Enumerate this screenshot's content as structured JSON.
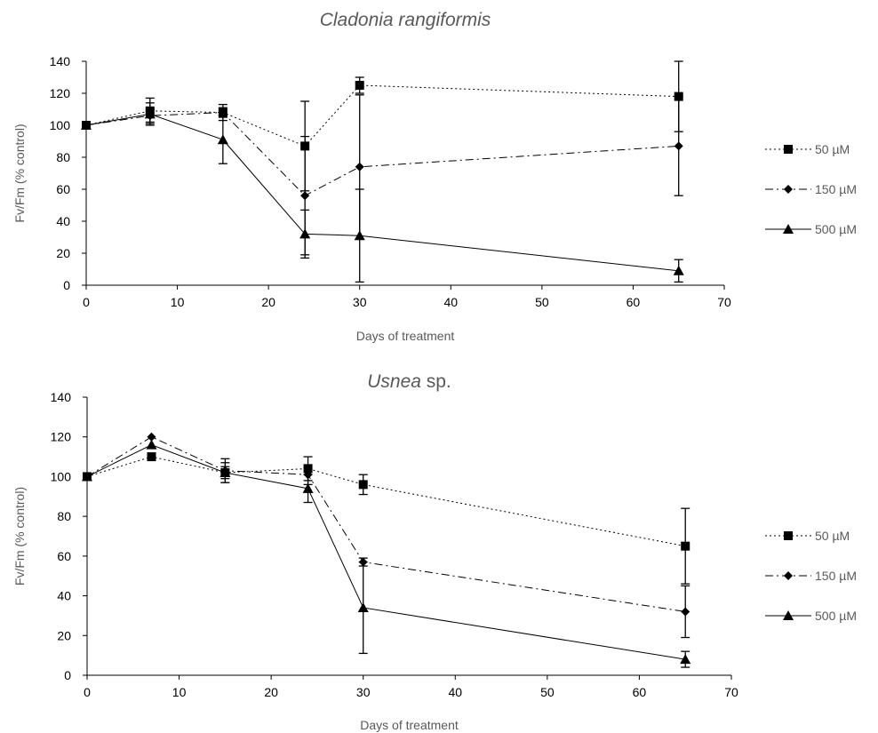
{
  "chart_data": [
    {
      "type": "line",
      "title_italic": "Cladonia rangiformis",
      "title_rest": "",
      "xlabel": "Days of treatment",
      "ylabel": "Fv/Fm (% control)",
      "xlim": [
        0,
        70
      ],
      "ylim": [
        0,
        140
      ],
      "x_ticks": [
        0,
        10,
        20,
        30,
        40,
        50,
        60,
        70
      ],
      "y_ticks": [
        0,
        20,
        40,
        60,
        80,
        100,
        120,
        140
      ],
      "grid": false,
      "legend_position": "right",
      "series": [
        {
          "name": "50 µM",
          "marker": "square",
          "dash": "dotted",
          "x": [
            0,
            7,
            15,
            24,
            30,
            65
          ],
          "y": [
            100,
            109,
            108,
            87,
            125,
            118
          ],
          "error": [
            0,
            8,
            5,
            28,
            5,
            22
          ]
        },
        {
          "name": "150 µM",
          "marker": "diamond",
          "dash": "dashdot",
          "x": [
            0,
            7,
            15,
            24,
            30,
            65
          ],
          "y": [
            100,
            106,
            108,
            56,
            74,
            87
          ],
          "error": [
            0,
            4,
            3,
            37,
            45,
            31
          ]
        },
        {
          "name": "500 µM",
          "marker": "triangle",
          "dash": "solid",
          "x": [
            0,
            7,
            15,
            24,
            30,
            65
          ],
          "y": [
            100,
            107,
            91,
            32,
            31,
            9
          ],
          "error": [
            0,
            7,
            15,
            15,
            29,
            7
          ]
        }
      ]
    },
    {
      "type": "line",
      "title_italic": "Usnea",
      "title_rest": " sp.",
      "xlabel": "Days of treatment",
      "ylabel": "Fv/Fm (% control)",
      "xlim": [
        0,
        70
      ],
      "ylim": [
        0,
        140
      ],
      "x_ticks": [
        0,
        10,
        20,
        30,
        40,
        50,
        60,
        70
      ],
      "y_ticks": [
        0,
        20,
        40,
        60,
        80,
        100,
        120,
        140
      ],
      "grid": false,
      "legend_position": "right",
      "series": [
        {
          "name": "50 µM",
          "marker": "square",
          "dash": "dotted",
          "x": [
            0,
            7,
            15,
            24,
            30,
            65
          ],
          "y": [
            100,
            110,
            102,
            104,
            96,
            65
          ],
          "error": [
            0,
            0,
            5,
            6,
            5,
            19
          ]
        },
        {
          "name": "150 µM",
          "marker": "diamond",
          "dash": "dashdot",
          "x": [
            0,
            7,
            15,
            24,
            30,
            65
          ],
          "y": [
            100,
            120,
            103,
            101,
            57,
            32
          ],
          "error": [
            0,
            0,
            6,
            5,
            2,
            13
          ]
        },
        {
          "name": "500 µM",
          "marker": "triangle",
          "dash": "solid",
          "x": [
            0,
            7,
            15,
            24,
            30,
            65
          ],
          "y": [
            100,
            116,
            102,
            94,
            34,
            8
          ],
          "error": [
            0,
            0,
            3,
            7,
            23,
            4
          ]
        }
      ]
    }
  ],
  "colors": {
    "line": "#000000",
    "axis": "#000000",
    "title": "#595959",
    "axis_title": "#595959",
    "legend_text": "#595959"
  }
}
